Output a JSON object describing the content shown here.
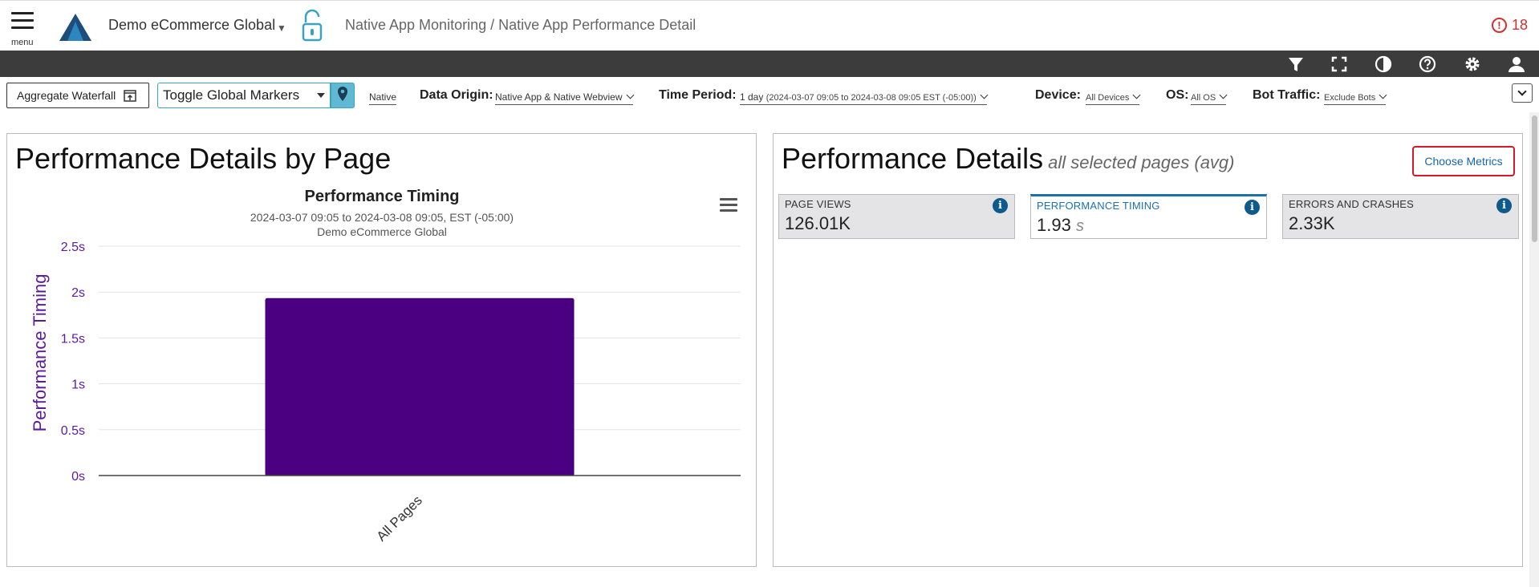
{
  "header": {
    "menu_label": "menu",
    "app_name": "Demo eCommerce Global",
    "breadcrumb": "Native App Monitoring / Native App Performance Detail",
    "alert_count": "18",
    "alert_symbol": "!"
  },
  "toolbar": {
    "icons": [
      "filter-icon",
      "fullscreen-icon",
      "contrast-icon",
      "help-icon",
      "settings-icon",
      "user-icon"
    ]
  },
  "filters": {
    "aggregate_waterfall": "Aggregate Waterfall",
    "toggle_markers": "Toggle Global Markers",
    "native": "Native",
    "data_origin_label": "Data Origin:",
    "data_origin_value": "Native App & Native Webview",
    "time_period_label": "Time Period:",
    "time_period_value": "1 day",
    "time_period_range": "(2024-03-07 09:05 to 2024-03-08 09:05 EST (-05:00))",
    "device_label": "Device:",
    "device_value": "All Devices",
    "os_label": "OS:",
    "os_value": "All OS",
    "bot_label": "Bot Traffic:",
    "bot_value": "Exclude Bots"
  },
  "left_panel": {
    "title": "Performance Details by Page"
  },
  "chart_data": {
    "type": "bar",
    "title": "Performance Timing",
    "subtitle": "2024-03-07 09:05 to 2024-03-08 09:05, EST (-05:00)",
    "subtitle2": "Demo eCommerce Global",
    "xlabel": "",
    "ylabel": "Performance Timing",
    "categories": [
      "All Pages"
    ],
    "values": [
      1.93
    ],
    "ylim": [
      0,
      2.5
    ],
    "yticks": [
      "0s",
      "0.5s",
      "1s",
      "1.5s",
      "2s",
      "2.5s"
    ],
    "bar_color": "#4b0082",
    "axis_color": "#5b1a9e",
    "grid": true
  },
  "right_panel": {
    "title": "Performance Details",
    "subtitle": "all selected pages (avg)",
    "choose_metrics": "Choose Metrics",
    "metrics": [
      {
        "label": "PAGE VIEWS",
        "value": "126.01K",
        "unit": ""
      },
      {
        "label": "PERFORMANCE TIMING",
        "value": "1.93",
        "unit": "s"
      },
      {
        "label": "ERRORS AND CRASHES",
        "value": "2.33K",
        "unit": ""
      }
    ]
  }
}
